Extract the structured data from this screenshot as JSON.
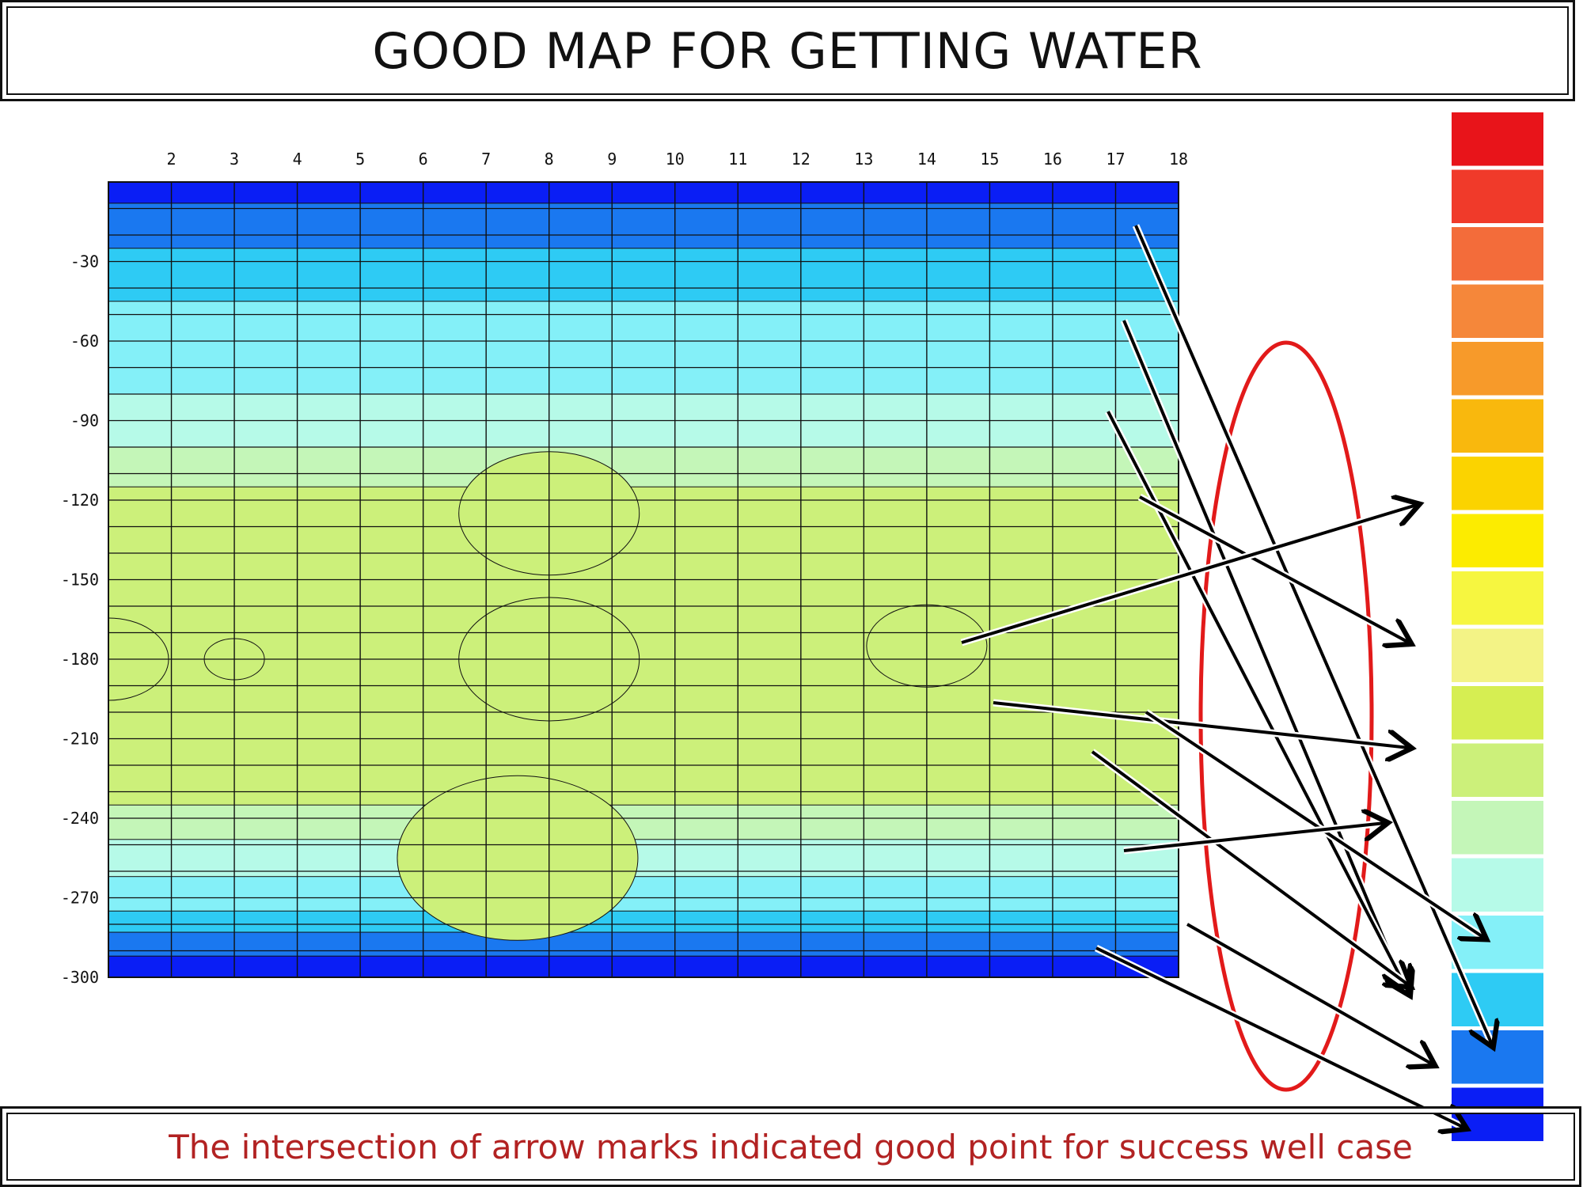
{
  "title": "GOOD MAP FOR GETTING WATER",
  "caption": "The intersection of arrow marks indicated good point for success well case",
  "chart_data": {
    "type": "heatmap",
    "x_ticks": [
      "2",
      "3",
      "4",
      "5",
      "6",
      "7",
      "8",
      "9",
      "10",
      "11",
      "12",
      "13",
      "14",
      "15",
      "16",
      "17",
      "18"
    ],
    "y_ticks": [
      "-30",
      "-60",
      "-90",
      "-120",
      "-150",
      "-180",
      "-210",
      "-240",
      "-270",
      "-300"
    ],
    "xlim": [
      1,
      18
    ],
    "ylim": [
      -300,
      0
    ],
    "colorbar": [
      "#e8141a",
      "#f03a2a",
      "#f36c3a",
      "#f5873a",
      "#f79a2a",
      "#f9b80d",
      "#fbd300",
      "#fcec00",
      "#f6f640",
      "#f3f386",
      "#d6ee52",
      "#ccf07a",
      "#c4f6b8",
      "#b6fae8",
      "#84f0f8",
      "#2ecbf4",
      "#1a78f0",
      "#0a1ef5"
    ],
    "colorbar_colors": [
      "#e8141a",
      "#f03a2a",
      "#f36c3a",
      "#f5873a",
      "#f79a2a",
      "#f9b80d",
      "#fbd300",
      "#fcec00",
      "#f6f640",
      "#f3f386",
      "#d6ee52",
      "#ccf07a",
      "#c4f6b8",
      "#b6fae8",
      "#84f0f8",
      "#2ecbf4",
      "#1a78f0",
      "#0a1ef5"
    ],
    "grid": true,
    "hotspots": [
      {
        "x": 1,
        "y": -180,
        "level": 7
      },
      {
        "x": 3,
        "y": -180,
        "level": 6
      },
      {
        "x": 8,
        "y": -180,
        "level": 8
      },
      {
        "x": 8,
        "y": -125,
        "level": 8
      },
      {
        "x": 14,
        "y": -175,
        "level": 7
      },
      {
        "x": 7.5,
        "y": -255,
        "level": 9
      }
    ],
    "annotation_shapes": [
      "arrows",
      "red-ellipse"
    ]
  }
}
